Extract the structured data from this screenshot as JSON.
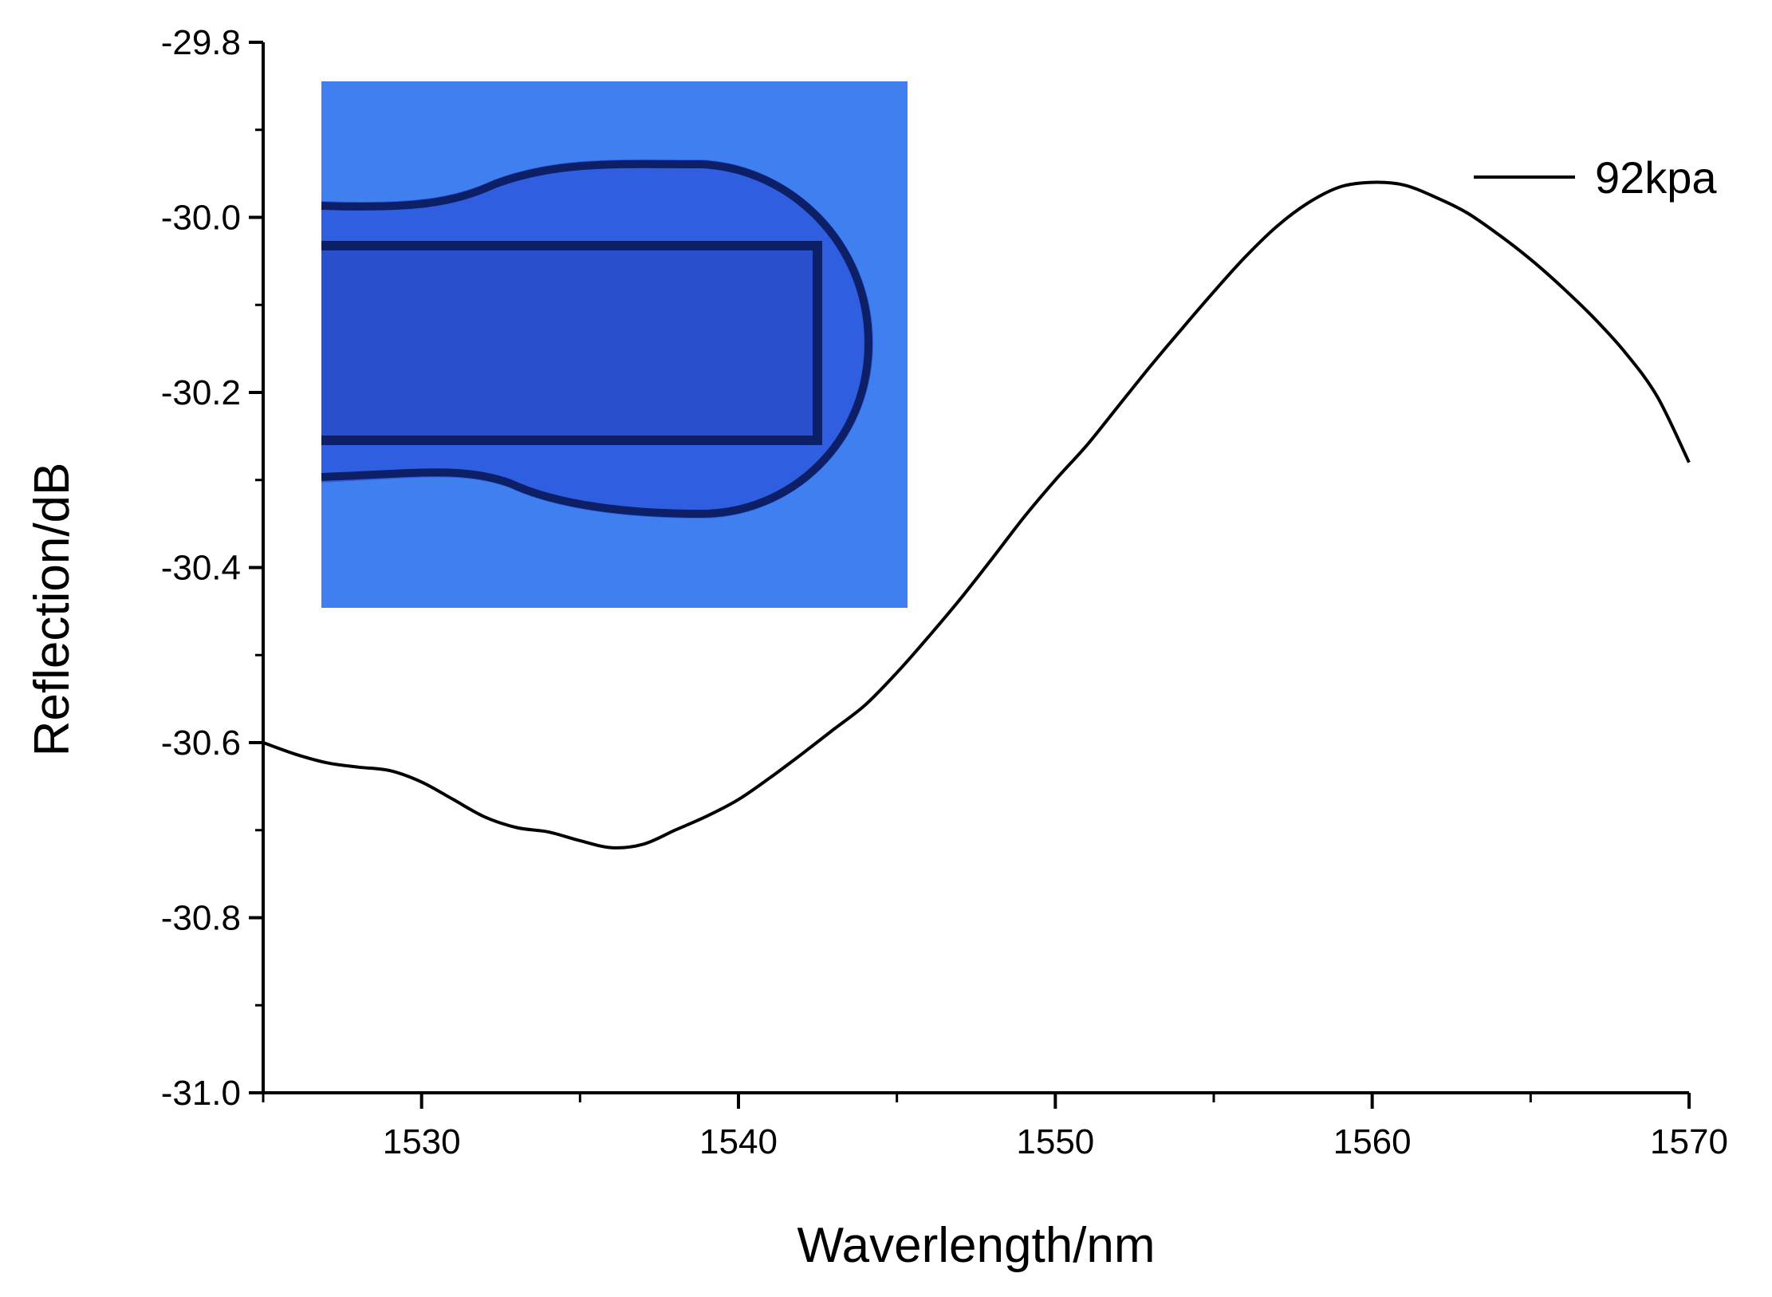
{
  "chart_data": {
    "type": "line",
    "xlabel": "Waverlength/nm",
    "ylabel": "Reflection/dB",
    "xlim": [
      1525,
      1570
    ],
    "ylim": [
      -31.0,
      -29.8
    ],
    "x_ticks": [
      1530,
      1540,
      1550,
      1560,
      1570
    ],
    "y_ticks": [
      -31.0,
      -30.8,
      -30.6,
      -30.4,
      -30.2,
      -30.0,
      -29.8
    ],
    "y_tick_labels": [
      "-31.0",
      "-30.8",
      "-30.6",
      "-30.4",
      "-30.2",
      "-30.0",
      "-29.8"
    ],
    "grid": false,
    "legend_position": "top-right",
    "series": [
      {
        "name": "92kpa",
        "color": "#000000",
        "x": [
          1525,
          1526,
          1527,
          1528,
          1529,
          1530,
          1531,
          1532,
          1533,
          1534,
          1535,
          1536,
          1537,
          1538,
          1539,
          1540,
          1541,
          1542,
          1543,
          1544,
          1545,
          1546,
          1547,
          1548,
          1549,
          1550,
          1551,
          1552,
          1553,
          1554,
          1555,
          1556,
          1557,
          1558,
          1559,
          1560,
          1561,
          1562,
          1563,
          1564,
          1565,
          1566,
          1567,
          1568,
          1569,
          1570
        ],
        "y": [
          -30.6,
          -30.613,
          -30.623,
          -30.628,
          -30.632,
          -30.645,
          -30.665,
          -30.685,
          -30.697,
          -30.702,
          -30.712,
          -30.72,
          -30.716,
          -30.7,
          -30.684,
          -30.665,
          -30.64,
          -30.613,
          -30.585,
          -30.557,
          -30.52,
          -30.479,
          -30.436,
          -30.39,
          -30.343,
          -30.3,
          -30.26,
          -30.215,
          -30.17,
          -30.127,
          -30.085,
          -30.045,
          -30.01,
          -29.983,
          -29.965,
          -29.96,
          -29.963,
          -29.977,
          -29.995,
          -30.02,
          -30.048,
          -30.08,
          -30.115,
          -30.155,
          -30.205,
          -30.28
        ]
      }
    ],
    "inset_image": {
      "description_kind": "micrograph",
      "colors": {
        "background": "#3f7ff0",
        "fiber": "#2f5fe0",
        "core": "#2a4fcc",
        "edge": "#0d1f66"
      }
    }
  }
}
